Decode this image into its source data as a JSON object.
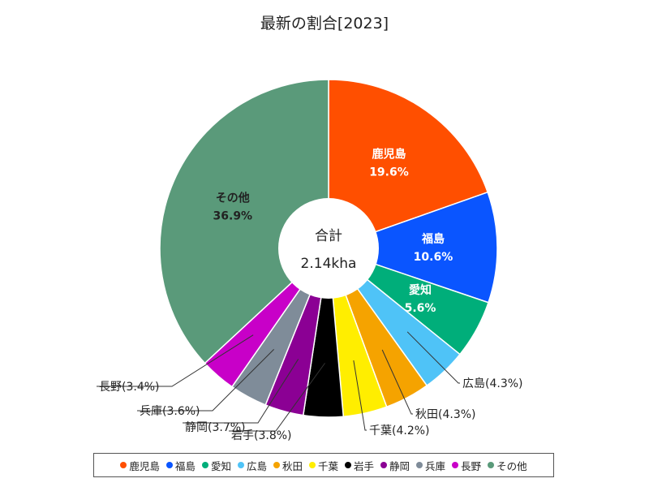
{
  "chart_data": {
    "type": "pie",
    "title": "最新の割合[2023]",
    "center_label": "合計",
    "center_value": "2.14kha",
    "slices": [
      {
        "name": "鹿児島",
        "percent": 19.6,
        "label": "19.6%",
        "color": "#ff4f00",
        "label_style": "inside-light"
      },
      {
        "name": "福島",
        "percent": 10.6,
        "label": "10.6%",
        "color": "#0a55ff",
        "label_style": "inside-light"
      },
      {
        "name": "愛知",
        "percent": 5.6,
        "label": "5.6%",
        "color": "#00ae7a",
        "label_style": "inside-light"
      },
      {
        "name": "広島",
        "percent": 4.3,
        "label": "広島(4.3%)",
        "color": "#4fc3f7",
        "label_style": "outside"
      },
      {
        "name": "秋田",
        "percent": 4.3,
        "label": "秋田(4.3%)",
        "color": "#f5a300",
        "label_style": "outside"
      },
      {
        "name": "千葉",
        "percent": 4.2,
        "label": "千葉(4.2%)",
        "color": "#ffee00",
        "label_style": "outside"
      },
      {
        "name": "岩手",
        "percent": 3.8,
        "label": "岩手(3.8%)",
        "color": "#000000",
        "label_style": "outside"
      },
      {
        "name": "静岡",
        "percent": 3.7,
        "label": "静岡(3.7%)",
        "color": "#8b0094",
        "label_style": "outside"
      },
      {
        "name": "兵庫",
        "percent": 3.6,
        "label": "兵庫(3.6%)",
        "color": "#7f8c99",
        "label_style": "outside"
      },
      {
        "name": "長野",
        "percent": 3.4,
        "label": "長野(3.4%)",
        "color": "#c800c8",
        "label_style": "outside"
      },
      {
        "name": "その他",
        "percent": 36.9,
        "label": "36.9%",
        "color": "#5a9a7a",
        "label_style": "inside-dark"
      }
    ],
    "legend_position": "bottom"
  }
}
